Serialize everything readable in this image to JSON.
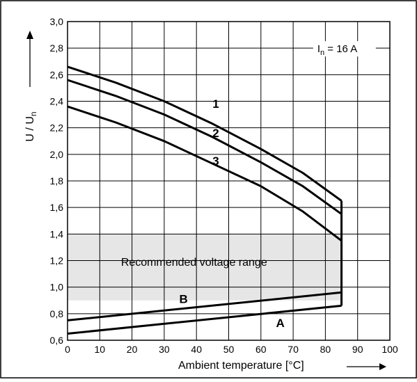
{
  "chart_data": {
    "type": "line",
    "xlabel": "Ambient temperature [°C]",
    "ylabel_main": "U / U",
    "ylabel_sub": "n",
    "xlim": [
      0,
      100
    ],
    "ylim": [
      0.6,
      3.0
    ],
    "x_ticks": [
      0,
      10,
      20,
      30,
      40,
      50,
      60,
      70,
      80,
      90,
      100
    ],
    "y_ticks": [
      0.6,
      0.8,
      1.0,
      1.2,
      1.4,
      1.6,
      1.8,
      2.0,
      2.2,
      2.4,
      2.6,
      2.8,
      3.0
    ],
    "y_tick_labels": [
      "0,6",
      "0,8",
      "1,0",
      "1,2",
      "1,4",
      "1,6",
      "1,8",
      "2,0",
      "2,2",
      "2,4",
      "2,6",
      "2,8",
      "3,0"
    ],
    "grid": true,
    "annotation": {
      "main": "I",
      "sub": "n",
      "rest": " = 16 A"
    },
    "shaded_region": {
      "label": "Recommended voltage range",
      "x": [
        0,
        85
      ],
      "y": [
        0.9,
        1.4
      ],
      "color": "#e6e6e6"
    },
    "series": [
      {
        "name": "1",
        "label_at": [
          46,
          2.35
        ],
        "x": [
          0,
          15,
          30,
          45,
          60,
          73,
          85
        ],
        "y": [
          2.66,
          2.54,
          2.4,
          2.23,
          2.04,
          1.86,
          1.65
        ]
      },
      {
        "name": "2",
        "label_at": [
          46,
          2.13
        ],
        "x": [
          0,
          15,
          30,
          45,
          60,
          73,
          85
        ],
        "y": [
          2.56,
          2.44,
          2.3,
          2.13,
          1.94,
          1.76,
          1.55
        ]
      },
      {
        "name": "3",
        "label_at": [
          46,
          1.92
        ],
        "x": [
          0,
          15,
          30,
          45,
          60,
          73,
          85
        ],
        "y": [
          2.36,
          2.24,
          2.1,
          1.93,
          1.76,
          1.57,
          1.35
        ]
      },
      {
        "name": "B",
        "label_at": [
          36,
          0.88
        ],
        "x": [
          0,
          85
        ],
        "y": [
          0.75,
          0.96
        ]
      },
      {
        "name": "A",
        "label_at": [
          66,
          0.7
        ],
        "x": [
          0,
          85
        ],
        "y": [
          0.65,
          0.86
        ]
      }
    ],
    "vertical_limit": {
      "x": 85,
      "y": [
        0.86,
        1.65
      ]
    },
    "line_color": "#000000",
    "grid_color": "#000000"
  }
}
